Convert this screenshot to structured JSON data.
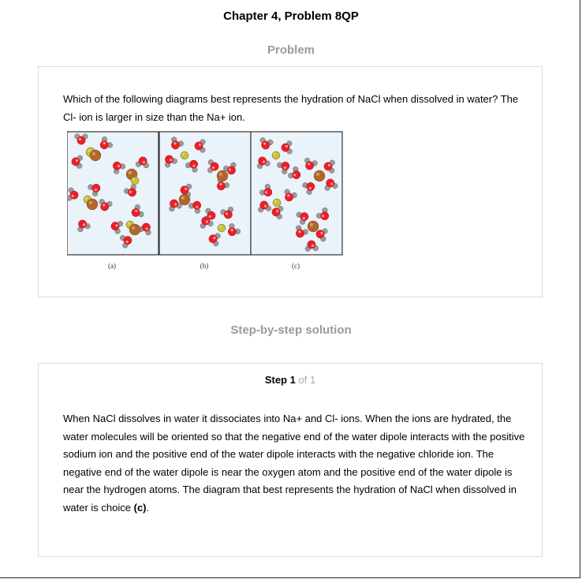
{
  "chapter_title": "Chapter 4, Problem 8QP",
  "problem": {
    "heading": "Problem",
    "question": "Which of the following diagrams best represents the hydration of NaCl when dissolved in water? The Cl- ion is larger in size than the Na+ ion.",
    "panel_labels": [
      "(a)",
      "(b)",
      "(c)"
    ]
  },
  "solution": {
    "heading": "Step-by-step solution",
    "step_label": "Step",
    "step_number": "1",
    "step_of": "of 1",
    "answer_text": "When NaCl dissolves in water it dissociates into Na+ and Cl- ions. When the ions are hydrated, the water molecules will be oriented so that the negative end of the water dipole interacts with the positive sodium ion and the positive end of the water dipole interacts with the negative chloride ion. The negative end of the water dipole is near the oxygen atom and the positive end of the water dipole is near the hydrogen atoms. The diagram that best represents the hydration of NaCl when dissolved in water is choice",
    "answer_choice": "(c)",
    "answer_end": "."
  },
  "colors": {
    "panel_bg": "#eaf2fa",
    "oxygen": "#e8202a",
    "hydrogen": "#9a9a9a",
    "sodium": "#c9c233",
    "chloride": "#b5652a"
  }
}
